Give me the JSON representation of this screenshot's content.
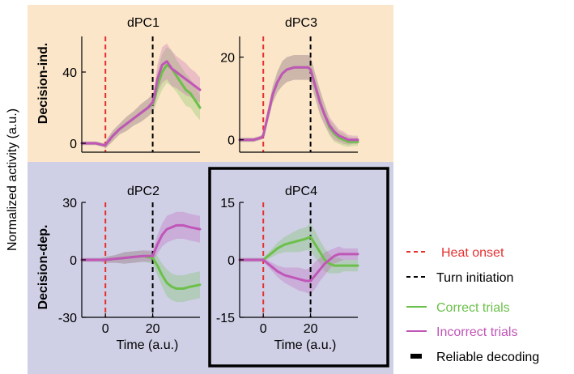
{
  "figure": {
    "y_axis_label": "Normalized activity (a.u.)",
    "row_labels": [
      "Decision-ind.",
      "Decision-dep."
    ],
    "row_colors": [
      "#fbe6c9",
      "#cfd0e6"
    ]
  },
  "colors": {
    "correct": "#6cc04a",
    "incorrect": "#c056b8",
    "heat": "#e53030",
    "turn": "#000000"
  },
  "legend": {
    "items": [
      {
        "label": "Heat onset",
        "style": "dashed-red"
      },
      {
        "label": "Turn initiation",
        "style": "dashed-black"
      },
      {
        "label": "Correct trials",
        "style": "line-green"
      },
      {
        "label": "Incorrect trials",
        "style": "line-magenta"
      },
      {
        "label": "Reliable decoding",
        "style": "thick-black"
      }
    ]
  },
  "chart_data": [
    {
      "type": "line",
      "title": "dPC1",
      "xlabel": "",
      "ylabel": "",
      "xlim": [
        -10,
        40
      ],
      "ylim": [
        -5,
        60
      ],
      "yticks": [
        0,
        40
      ],
      "xticks": [],
      "heat_onset": 0,
      "turn_initiation": 20,
      "series": [
        {
          "name": "Correct trials",
          "color_key": "correct",
          "x": [
            -10,
            -7,
            -4,
            -1,
            0,
            3,
            6,
            9,
            12,
            15,
            18,
            20,
            21,
            22,
            24,
            26,
            28,
            30,
            32,
            34,
            36,
            38,
            40
          ],
          "y": [
            0,
            0,
            0,
            -1,
            -1,
            4,
            8,
            11,
            14,
            17,
            20,
            22,
            26,
            32,
            40,
            44,
            42,
            38,
            34,
            30,
            28,
            24,
            20
          ],
          "band": [
            1,
            1,
            1,
            1,
            2,
            3,
            3,
            4,
            4,
            5,
            5,
            5,
            6,
            8,
            10,
            10,
            10,
            9,
            9,
            9,
            8,
            8,
            7
          ]
        },
        {
          "name": "Incorrect trials",
          "color_key": "incorrect",
          "x": [
            -10,
            -7,
            -4,
            -1,
            0,
            3,
            6,
            9,
            12,
            15,
            18,
            20,
            21,
            22,
            24,
            26,
            28,
            30,
            32,
            34,
            36,
            38,
            40
          ],
          "y": [
            0,
            0,
            0,
            -1,
            -1,
            4,
            8,
            11,
            14,
            17,
            20,
            23,
            28,
            36,
            44,
            46,
            42,
            40,
            38,
            36,
            34,
            32,
            30
          ],
          "band": [
            1,
            1,
            1,
            1,
            2,
            3,
            3,
            4,
            4,
            5,
            5,
            5,
            6,
            8,
            10,
            10,
            10,
            9,
            9,
            9,
            8,
            8,
            7
          ]
        }
      ]
    },
    {
      "type": "line",
      "title": "dPC3",
      "xlabel": "",
      "ylabel": "",
      "xlim": [
        -10,
        40
      ],
      "ylim": [
        -3,
        25
      ],
      "yticks": [
        0,
        20
      ],
      "xticks": [],
      "heat_onset": 0,
      "turn_initiation": 20,
      "series": [
        {
          "name": "Correct trials",
          "color_key": "correct",
          "x": [
            -10,
            -7,
            -4,
            -1,
            0,
            2,
            4,
            6,
            8,
            10,
            13,
            16,
            19,
            20,
            22,
            24,
            26,
            28,
            30,
            32,
            34,
            36,
            38,
            40
          ],
          "y": [
            0,
            0,
            0,
            0.5,
            1,
            6,
            11,
            14,
            16,
            17,
            17.5,
            17.5,
            17.5,
            17,
            13,
            9,
            6,
            3,
            1.5,
            0.5,
            0,
            -0.5,
            -0.5,
            -0.5
          ],
          "band": [
            0.5,
            0.5,
            0.5,
            0.5,
            0.8,
            1.5,
            2,
            2.5,
            3,
            3,
            3,
            3,
            3,
            3,
            3,
            3,
            2.5,
            2,
            2,
            1.5,
            1.5,
            1.2,
            1,
            1
          ]
        },
        {
          "name": "Incorrect trials",
          "color_key": "incorrect",
          "x": [
            -10,
            -7,
            -4,
            -1,
            0,
            2,
            4,
            6,
            8,
            10,
            13,
            16,
            19,
            20,
            22,
            24,
            26,
            28,
            30,
            32,
            34,
            36,
            38,
            40
          ],
          "y": [
            0,
            0,
            0,
            0.5,
            1,
            6,
            11,
            14,
            16,
            17,
            17.5,
            17.5,
            17.5,
            17,
            13,
            9,
            6,
            3.5,
            2,
            1,
            0.5,
            0,
            0,
            0
          ],
          "band": [
            0.5,
            0.5,
            0.5,
            0.5,
            0.8,
            1.5,
            2,
            2.5,
            3,
            3,
            3,
            3,
            3,
            3,
            3,
            3,
            2.5,
            2,
            2,
            1.5,
            1.5,
            1.2,
            1,
            1
          ]
        }
      ]
    },
    {
      "type": "line",
      "title": "dPC2",
      "xlabel": "Time (a.u.)",
      "ylabel": "",
      "xlim": [
        -10,
        40
      ],
      "ylim": [
        -30,
        30
      ],
      "yticks": [
        -30,
        0,
        30
      ],
      "xticks": [
        0,
        20
      ],
      "heat_onset": 0,
      "turn_initiation": 20,
      "series": [
        {
          "name": "Correct trials",
          "color_key": "correct",
          "x": [
            -10,
            -6,
            -2,
            0,
            4,
            8,
            12,
            16,
            20,
            22,
            24,
            26,
            28,
            30,
            33,
            36,
            40
          ],
          "y": [
            0,
            0,
            0,
            0,
            0.5,
            1,
            1.5,
            2,
            1,
            -3,
            -8,
            -12,
            -14,
            -15,
            -15,
            -14,
            -13
          ],
          "band": [
            1,
            1,
            1,
            1.5,
            2,
            3,
            3,
            3,
            3,
            5,
            6,
            7,
            7,
            7,
            7,
            7,
            7
          ]
        },
        {
          "name": "Incorrect trials",
          "color_key": "incorrect",
          "x": [
            -10,
            -6,
            -2,
            0,
            4,
            8,
            12,
            16,
            20,
            22,
            24,
            26,
            28,
            30,
            33,
            36,
            40
          ],
          "y": [
            0,
            0,
            0,
            0,
            0.5,
            1,
            1.5,
            2,
            2,
            8,
            13,
            16,
            17,
            18,
            18,
            17,
            16
          ],
          "band": [
            1,
            1,
            1,
            1.5,
            2,
            3,
            3,
            3,
            3,
            5,
            6,
            7,
            7,
            7,
            7,
            7,
            7
          ]
        }
      ]
    },
    {
      "type": "line",
      "title": "dPC4",
      "xlabel": "Time (a.u.)",
      "ylabel": "",
      "xlim": [
        -10,
        40
      ],
      "ylim": [
        -15,
        15
      ],
      "yticks": [
        -15,
        0,
        15
      ],
      "xticks": [
        0,
        20
      ],
      "heat_onset": 0,
      "turn_initiation": 20,
      "boxed": true,
      "series": [
        {
          "name": "Correct trials",
          "color_key": "correct",
          "x": [
            -10,
            -6,
            -2,
            0,
            3,
            6,
            9,
            12,
            15,
            18,
            20,
            22,
            24,
            26,
            28,
            30,
            32,
            34,
            36,
            40
          ],
          "y": [
            0,
            0,
            0,
            0,
            1.5,
            3,
            4,
            4.5,
            5,
            5.5,
            6,
            4,
            2,
            0,
            -1,
            -1.5,
            -1.5,
            -1.5,
            -1.5,
            -1.5
          ],
          "band": [
            0.5,
            0.5,
            0.5,
            0.5,
            1,
            1.5,
            2,
            2.5,
            3,
            3,
            3.5,
            3.5,
            3,
            3,
            2.5,
            2,
            2,
            1.5,
            1.5,
            1.5
          ]
        },
        {
          "name": "Incorrect trials",
          "color_key": "incorrect",
          "x": [
            -10,
            -6,
            -2,
            0,
            3,
            6,
            9,
            12,
            15,
            18,
            20,
            22,
            24,
            26,
            28,
            30,
            32,
            34,
            36,
            40
          ],
          "y": [
            0,
            0,
            0,
            0,
            -1.5,
            -3,
            -4,
            -4.5,
            -5,
            -5.5,
            -5.5,
            -4,
            -2.5,
            -1,
            0,
            1,
            1.5,
            1.5,
            1.5,
            1.5
          ],
          "band": [
            0.5,
            0.5,
            0.5,
            0.5,
            1,
            1.5,
            2,
            2.5,
            3,
            3,
            3.5,
            3.5,
            3,
            3,
            2.5,
            2,
            2,
            1.5,
            1.5,
            1.5
          ]
        }
      ]
    }
  ]
}
